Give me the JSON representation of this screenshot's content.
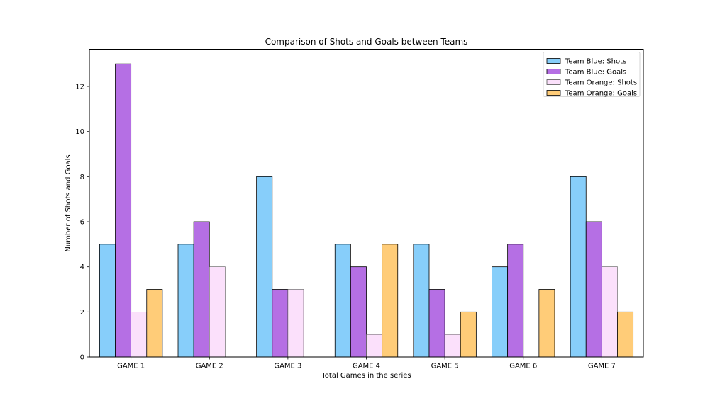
{
  "chart_data": {
    "type": "bar",
    "title": "Comparison of Shots and Goals between Teams",
    "xlabel": "Total Games in the series",
    "ylabel": "Number of Shots and Goals",
    "categories": [
      "GAME 1",
      "GAME 2",
      "GAME 3",
      "GAME 4",
      "GAME 5",
      "GAME 6",
      "GAME 7"
    ],
    "ylim": [
      0,
      13.65
    ],
    "yticks": [
      0,
      2,
      4,
      6,
      8,
      10,
      12
    ],
    "grid": false,
    "legend_position": "top-right",
    "series": [
      {
        "name": "Team Blue: Shots",
        "color": "#87cefa",
        "values": [
          5,
          5,
          8,
          5,
          5,
          4,
          8
        ]
      },
      {
        "name": "Team Blue: Goals",
        "color": "#b56fe4",
        "values": [
          13,
          6,
          3,
          4,
          3,
          5,
          6
        ]
      },
      {
        "name": "Team Orange: Shots",
        "color": "#fbe0fb",
        "values": [
          2,
          4,
          3,
          1,
          1,
          0,
          4
        ]
      },
      {
        "name": "Team Orange: Goals",
        "color": "#ffcc78",
        "values": [
          3,
          0,
          0,
          5,
          2,
          3,
          2
        ]
      }
    ]
  }
}
